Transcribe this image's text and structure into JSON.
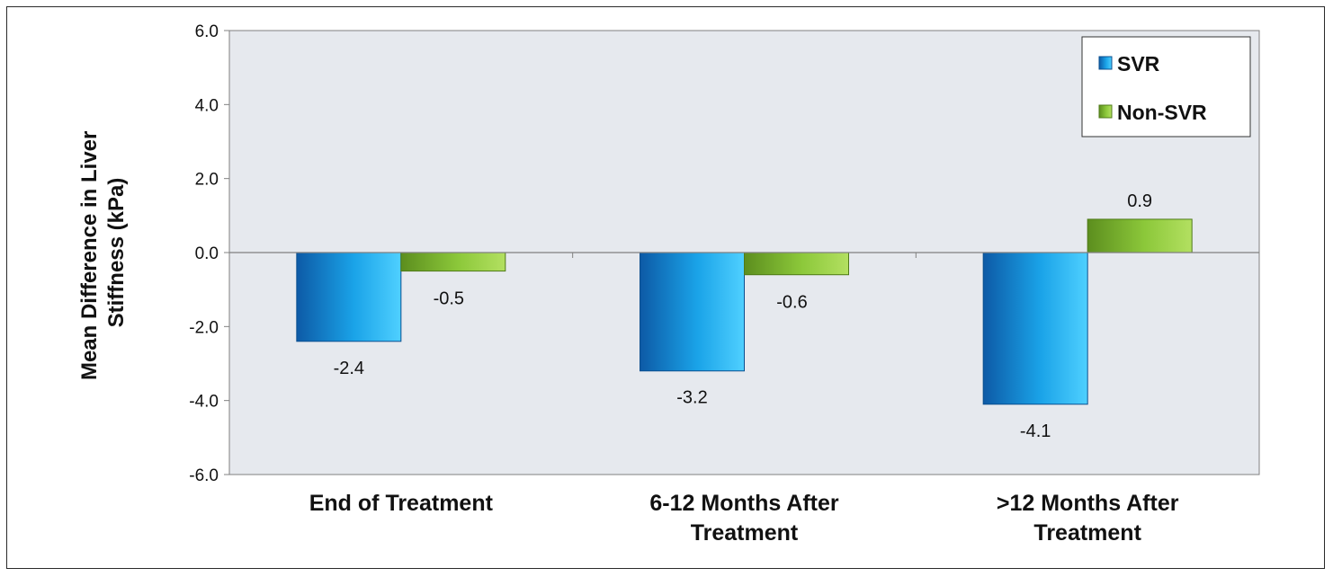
{
  "chart_data": {
    "type": "bar",
    "title": "",
    "xlabel": "",
    "ylabel": [
      "Mean Difference in Liver",
      "Stiffness (kPa)"
    ],
    "categories": [
      [
        "End of Treatment"
      ],
      [
        "6-12 Months After",
        "Treatment"
      ],
      [
        ">12 Months After",
        "Treatment"
      ]
    ],
    "series": [
      {
        "name": "SVR",
        "values": [
          -2.4,
          -3.2,
          -4.1
        ],
        "color": "#1aa3e8",
        "value_labels": [
          "-2.4",
          "-3.2",
          "-4.1"
        ]
      },
      {
        "name": "Non-SVR",
        "values": [
          -0.5,
          -0.6,
          0.9
        ],
        "color": "#8cc83a",
        "value_labels": [
          "-0.5",
          "-0.6",
          "0.9"
        ]
      }
    ],
    "ylim": [
      -6.0,
      6.0
    ],
    "yticks": [
      6.0,
      4.0,
      2.0,
      0.0,
      -2.0,
      -4.0,
      -6.0
    ],
    "ytick_labels": [
      "6.0",
      "4.0",
      "2.0",
      "0.0",
      "-2.0",
      "-4.0",
      "-6.0"
    ],
    "grid": false,
    "legend_position": "top-right",
    "plot_background": "#e6e9ee"
  }
}
